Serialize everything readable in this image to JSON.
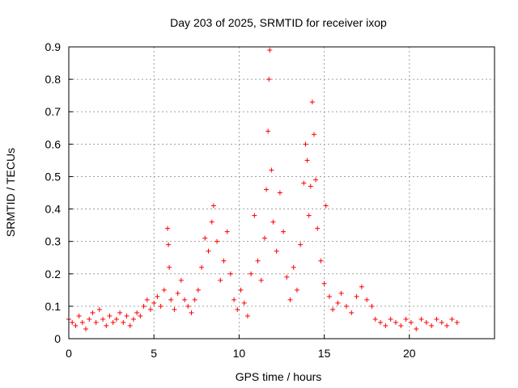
{
  "chart_data": {
    "type": "scatter",
    "title": "Day 203 of 2025, SRMTID for receiver ixop",
    "xlabel": "GPS time / hours",
    "ylabel": "SRMTID / TECUs",
    "xlim": [
      0,
      25
    ],
    "ylim": [
      0,
      0.9
    ],
    "xticks": [
      0,
      5,
      10,
      15,
      20
    ],
    "yticks": [
      0,
      0.1,
      0.2,
      0.3,
      0.4,
      0.5,
      0.6,
      0.7,
      0.8,
      0.9
    ],
    "grid": true,
    "marker": "+",
    "marker_color": "#ff0000",
    "series": [
      {
        "name": "SRMTID",
        "points": [
          [
            0.0,
            0.06
          ],
          [
            0.2,
            0.05
          ],
          [
            0.4,
            0.04
          ],
          [
            0.6,
            0.07
          ],
          [
            0.8,
            0.05
          ],
          [
            1.0,
            0.03
          ],
          [
            1.2,
            0.06
          ],
          [
            1.4,
            0.08
          ],
          [
            1.6,
            0.05
          ],
          [
            1.8,
            0.09
          ],
          [
            2.0,
            0.06
          ],
          [
            2.2,
            0.04
          ],
          [
            2.4,
            0.07
          ],
          [
            2.6,
            0.05
          ],
          [
            2.8,
            0.06
          ],
          [
            3.0,
            0.08
          ],
          [
            3.2,
            0.05
          ],
          [
            3.4,
            0.07
          ],
          [
            3.6,
            0.04
          ],
          [
            3.8,
            0.06
          ],
          [
            4.0,
            0.08
          ],
          [
            4.2,
            0.07
          ],
          [
            4.4,
            0.1
          ],
          [
            4.6,
            0.12
          ],
          [
            4.8,
            0.09
          ],
          [
            5.0,
            0.11
          ],
          [
            5.2,
            0.13
          ],
          [
            5.4,
            0.1
          ],
          [
            5.6,
            0.15
          ],
          [
            5.8,
            0.34
          ],
          [
            5.85,
            0.29
          ],
          [
            5.9,
            0.22
          ],
          [
            6.0,
            0.12
          ],
          [
            6.2,
            0.09
          ],
          [
            6.4,
            0.14
          ],
          [
            6.6,
            0.18
          ],
          [
            6.8,
            0.12
          ],
          [
            7.0,
            0.1
          ],
          [
            7.2,
            0.08
          ],
          [
            7.4,
            0.12
          ],
          [
            7.6,
            0.15
          ],
          [
            7.8,
            0.22
          ],
          [
            8.0,
            0.31
          ],
          [
            8.2,
            0.27
          ],
          [
            8.4,
            0.36
          ],
          [
            8.5,
            0.41
          ],
          [
            8.7,
            0.3
          ],
          [
            8.9,
            0.18
          ],
          [
            9.1,
            0.24
          ],
          [
            9.3,
            0.33
          ],
          [
            9.5,
            0.2
          ],
          [
            9.7,
            0.12
          ],
          [
            9.9,
            0.09
          ],
          [
            10.1,
            0.15
          ],
          [
            10.3,
            0.11
          ],
          [
            10.5,
            0.07
          ],
          [
            10.7,
            0.2
          ],
          [
            10.9,
            0.38
          ],
          [
            11.1,
            0.24
          ],
          [
            11.3,
            0.18
          ],
          [
            11.5,
            0.31
          ],
          [
            11.6,
            0.46
          ],
          [
            11.7,
            0.64
          ],
          [
            11.75,
            0.8
          ],
          [
            11.8,
            0.89
          ],
          [
            11.9,
            0.52
          ],
          [
            12.0,
            0.36
          ],
          [
            12.2,
            0.27
          ],
          [
            12.4,
            0.45
          ],
          [
            12.6,
            0.33
          ],
          [
            12.8,
            0.19
          ],
          [
            13.0,
            0.12
          ],
          [
            13.2,
            0.22
          ],
          [
            13.4,
            0.15
          ],
          [
            13.6,
            0.29
          ],
          [
            13.8,
            0.48
          ],
          [
            13.9,
            0.6
          ],
          [
            14.0,
            0.55
          ],
          [
            14.1,
            0.38
          ],
          [
            14.2,
            0.47
          ],
          [
            14.3,
            0.73
          ],
          [
            14.4,
            0.63
          ],
          [
            14.5,
            0.49
          ],
          [
            14.6,
            0.34
          ],
          [
            14.8,
            0.24
          ],
          [
            15.0,
            0.17
          ],
          [
            15.1,
            0.41
          ],
          [
            15.3,
            0.13
          ],
          [
            15.5,
            0.09
          ],
          [
            15.8,
            0.11
          ],
          [
            16.0,
            0.14
          ],
          [
            16.3,
            0.1
          ],
          [
            16.6,
            0.08
          ],
          [
            16.9,
            0.13
          ],
          [
            17.2,
            0.16
          ],
          [
            17.5,
            0.12
          ],
          [
            17.8,
            0.1
          ],
          [
            18.0,
            0.06
          ],
          [
            18.3,
            0.05
          ],
          [
            18.6,
            0.04
          ],
          [
            18.9,
            0.06
          ],
          [
            19.2,
            0.05
          ],
          [
            19.5,
            0.04
          ],
          [
            19.8,
            0.06
          ],
          [
            20.1,
            0.05
          ],
          [
            20.4,
            0.03
          ],
          [
            20.7,
            0.06
          ],
          [
            21.0,
            0.05
          ],
          [
            21.3,
            0.04
          ],
          [
            21.6,
            0.06
          ],
          [
            21.9,
            0.05
          ],
          [
            22.2,
            0.04
          ],
          [
            22.5,
            0.06
          ],
          [
            22.8,
            0.05
          ]
        ]
      }
    ]
  }
}
